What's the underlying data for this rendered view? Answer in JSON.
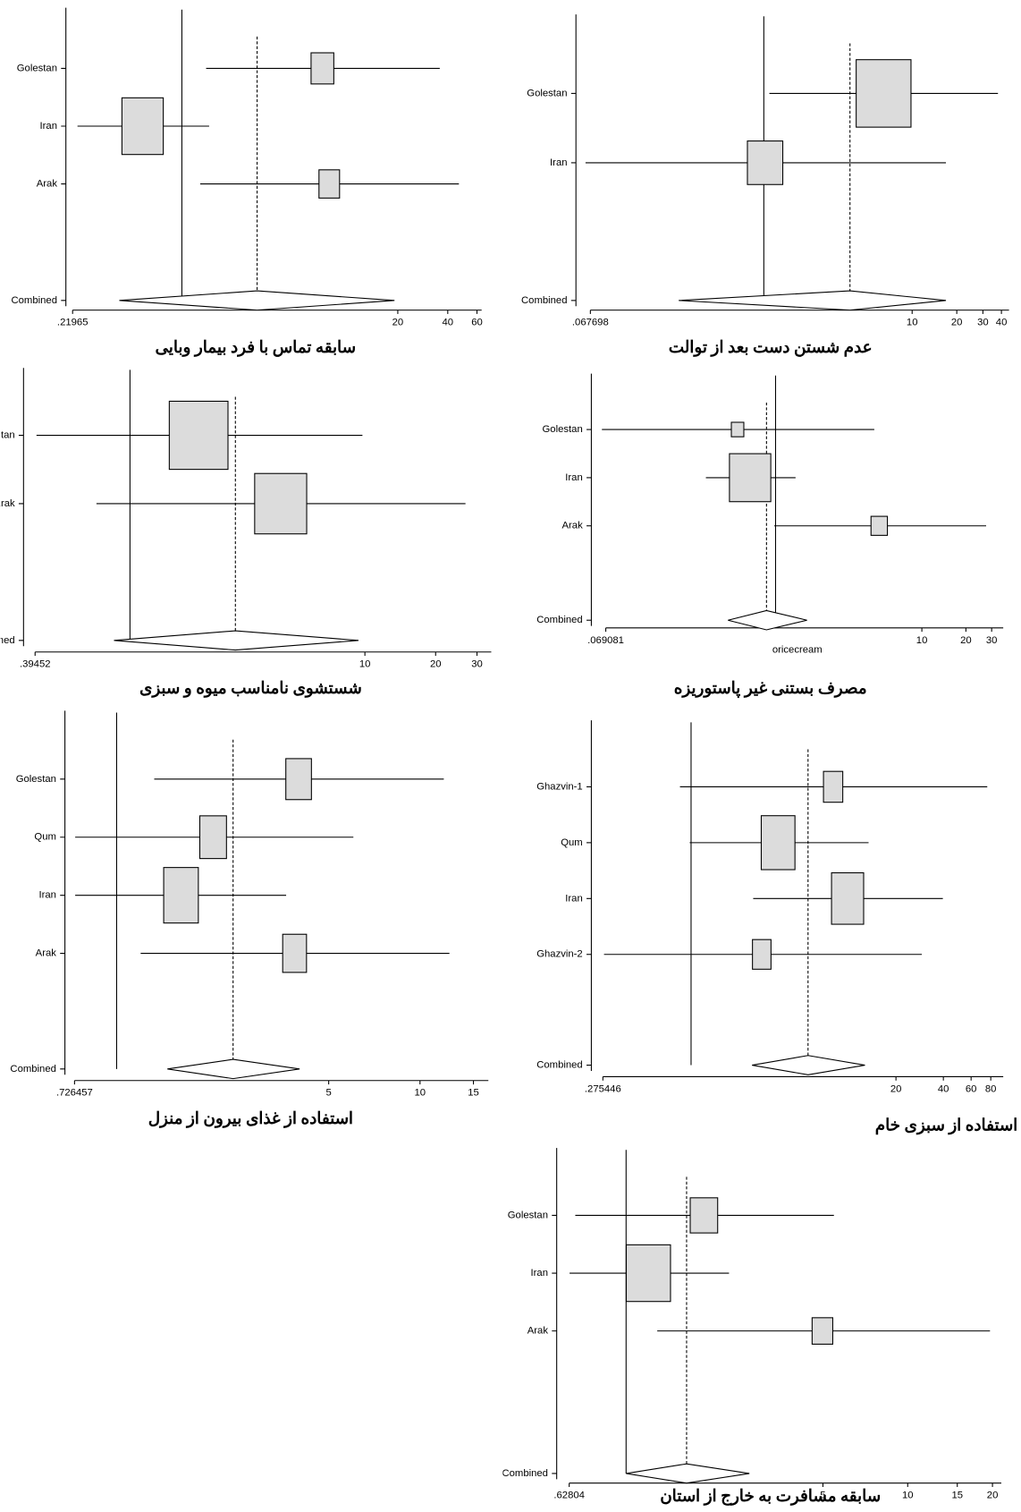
{
  "chart_data": [
    {
      "type": "forest",
      "xscale": "log",
      "title": "سابقه تماس با فرد بیمار وبایی",
      "categories": [
        "Golestan",
        "Iran",
        "Arak"
      ],
      "values": [
        7.03,
        0.58,
        7.73
      ],
      "lower": [
        1.4,
        0.235,
        1.29
      ],
      "upper": [
        35.8,
        1.46,
        46.7
      ],
      "weights": [
        19.5,
        64.5,
        16.0
      ],
      "combined": {
        "label": "Combined",
        "value": 2.84,
        "lower": 0.42,
        "upper": 19.1
      },
      "reference": 1,
      "color": "#dcdcdc",
      "xlim": [
        0.21965,
        64
      ],
      "xticks": [
        {
          "value": 0.21965,
          "label": ".21965"
        },
        20,
        40,
        60
      ]
    },
    {
      "type": "forest",
      "xscale": "log",
      "title": "عدم شستن دست بعد از توالت",
      "categories": [
        "Golestan",
        "Iran"
      ],
      "values": [
        6.42,
        1.02
      ],
      "lower": [
        1.09,
        0.0628
      ],
      "upper": [
        37.9,
        16.9
      ],
      "weights": [
        70.6,
        29.4
      ],
      "combined": {
        "label": "Combined",
        "value": 3.81,
        "lower": 0.267,
        "upper": 16.9
      },
      "reference": 1,
      "color": "#dcdcdc",
      "xlim": [
        0.067698,
        45
      ],
      "xticks": [
        {
          "value": 0.067698,
          "label": ".067698"
        },
        10,
        20,
        30,
        40
      ]
    },
    {
      "type": "forest",
      "xscale": "log",
      "title": "شستشوی نامناسب میوه و سبزی",
      "categories": [
        "Golestan",
        "Arak"
      ],
      "values": [
        1.96,
        4.38
      ],
      "lower": [
        0.4,
        0.72
      ],
      "upper": [
        9.76,
        26.8
      ],
      "weights": [
        56,
        44
      ],
      "combined": {
        "label": "Combined",
        "value": 2.81,
        "lower": 0.855,
        "upper": 9.39
      },
      "reference": 1,
      "color": "#dcdcdc",
      "xlim": [
        0.39452,
        34.5
      ],
      "xticks": [
        {
          "value": 0.39452,
          "label": ".39452"
        },
        10,
        20,
        30
      ]
    },
    {
      "type": "forest",
      "xscale": "log",
      "title": "مصرف بستنی غیر پاستوریزه",
      "xlabel": "oricecream",
      "categories": [
        "Golestan",
        "Iran",
        "Arak"
      ],
      "values": [
        0.55,
        0.67,
        5.11
      ],
      "lower": [
        0.065,
        0.334,
        0.98
      ],
      "upper": [
        4.73,
        1.37,
        27.5
      ],
      "weights": [
        7.3,
        80.1,
        12.6
      ],
      "combined": {
        "label": "Combined",
        "value": 0.867,
        "lower": 0.473,
        "upper": 1.64
      },
      "reference": 1,
      "color": "#dcdcdc",
      "xlim": [
        0.069081,
        36
      ],
      "xticks": [
        {
          "value": 0.069081,
          "label": ".069081"
        },
        10,
        20,
        30
      ]
    },
    {
      "type": "forest",
      "xscale": "log",
      "title": "استفاده از غذای بیرون از منزل",
      "categories": [
        "Golestan",
        "Qum",
        "Iran",
        "Arak"
      ],
      "values": [
        3.98,
        2.08,
        1.63,
        3.86
      ],
      "lower": [
        1.33,
        0.73,
        0.73,
        1.2
      ],
      "upper": [
        11.98,
        6.03,
        3.62,
        12.5
      ],
      "weights": [
        20.9,
        22.7,
        38.3,
        18.1
      ],
      "combined": {
        "label": "Combined",
        "value": 2.42,
        "lower": 1.47,
        "upper": 4.01
      },
      "reference": 1,
      "color": "#dcdcdc",
      "xlim": [
        0.726457,
        16.8
      ],
      "xticks": [
        {
          "value": 0.726457,
          "label": ".726457"
        },
        5,
        10,
        15
      ]
    },
    {
      "type": "forest",
      "xscale": "log",
      "title": "استفاده از سبزی خام",
      "categories": [
        "Ghazvin-1",
        "Qum",
        "Iran",
        "Ghazvin-2"
      ],
      "values": [
        7.98,
        3.57,
        9.86,
        2.81
      ],
      "lower": [
        0.85,
        0.98,
        2.48,
        0.28
      ],
      "upper": [
        76,
        13.4,
        39.7,
        29.2
      ],
      "weights": [
        12.9,
        39.4,
        35.8,
        11.9
      ],
      "combined": {
        "label": "Combined",
        "value": 5.53,
        "lower": 2.44,
        "upper": 12.7
      },
      "reference": 1,
      "color": "#dcdcdc",
      "xlim": [
        0.275446,
        96
      ],
      "xticks": [
        {
          "value": 0.275446,
          "label": ".275446"
        },
        20,
        40,
        60,
        80
      ]
    },
    {
      "type": "forest",
      "xscale": "log",
      "title": "سابقه مسافرت به خارج از استان",
      "categories": [
        "Golestan",
        "Iran",
        "Arak"
      ],
      "values": [
        1.89,
        1.2,
        4.98
      ],
      "lower": [
        0.66,
        0.63,
        1.29
      ],
      "upper": [
        5.47,
        2.32,
        19.6
      ],
      "weights": [
        24.0,
        62.4,
        13.6
      ],
      "combined": {
        "label": "Combined",
        "value": 1.64,
        "lower": 1.0,
        "upper": 2.74
      },
      "reference": 1,
      "color": "#dcdcdc",
      "xlim": [
        0.62804,
        21.5
      ],
      "xticks": [
        {
          "value": 0.62804,
          "label": ".62804"
        },
        5,
        10,
        15,
        20
      ]
    }
  ]
}
